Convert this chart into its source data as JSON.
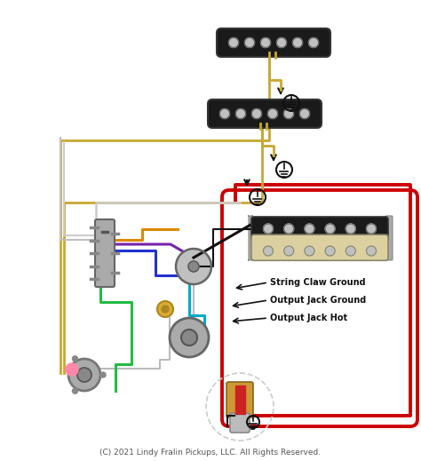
{
  "bg_color": "#ffffff",
  "copyright_text": "(C) 2021 Lindy Fralin Pickups, LLC. All Rights Reserved.",
  "copyright_fontsize": 6.5,
  "copyright_color": "#555555",
  "labels": {
    "string_claw": "String Claw Ground",
    "output_jack_ground": "Output Jack Ground",
    "output_jack_hot": "Output Jack Hot"
  },
  "label_fontsize": 7,
  "label_color": "#111111",
  "pickup_black": "#1a1a1a",
  "pickup_cream": "#ddd0a0",
  "pickup_silver": "#c0c0c0",
  "wire_gold": "#c8a832",
  "wire_red": "#cc0000",
  "wire_green": "#22bb44",
  "wire_blue": "#2233cc",
  "wire_purple": "#7722aa",
  "wire_orange": "#dd8800",
  "wire_teal": "#00aacc",
  "wire_black": "#111111",
  "wire_gray": "#888888",
  "arrow_color": "#111111",
  "pot_color": "#c0c0c0",
  "switch_color": "#aaaaaa",
  "jack_detail_orange": "#cc9933",
  "jack_detail_red": "#cc2222",
  "pink_cap": "#ff88aa"
}
